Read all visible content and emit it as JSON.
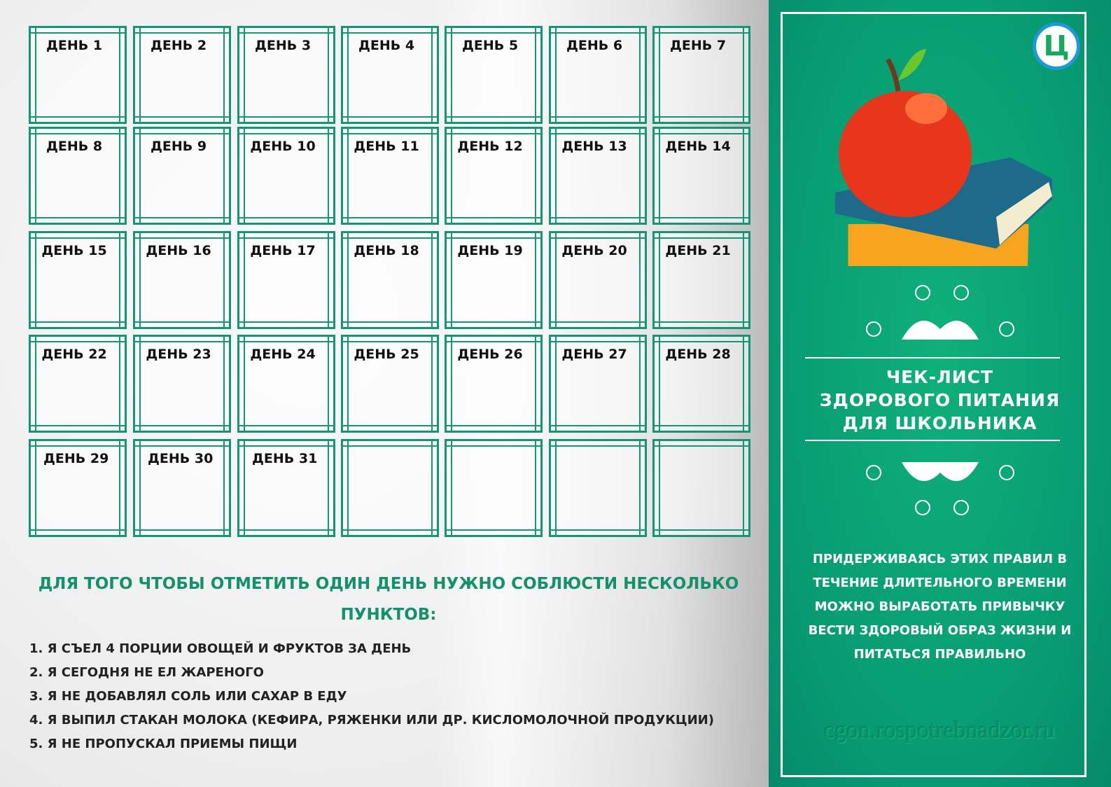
{
  "days": [
    "ДЕНЬ 1",
    "ДЕНЬ 2",
    "ДЕНЬ 3",
    "ДЕНЬ 4",
    "ДЕНЬ 5",
    "ДЕНЬ 6",
    "ДЕНЬ 7",
    "ДЕНЬ 8",
    "ДЕНЬ 9",
    "ДЕНЬ 10",
    "ДЕНЬ 11",
    "ДЕНЬ 12",
    "ДЕНЬ 13",
    "ДЕНЬ 14",
    "ДЕНЬ 15",
    "ДЕНЬ 16",
    "ДЕНЬ 17",
    "ДЕНЬ 18",
    "ДЕНЬ 19",
    "ДЕНЬ 20",
    "ДЕНЬ 21",
    "ДЕНЬ 22",
    "ДЕНЬ 23",
    "ДЕНЬ 24",
    "ДЕНЬ 25",
    "ДЕНЬ 26",
    "ДЕНЬ 27",
    "ДЕНЬ 28",
    "ДЕНЬ 29",
    "ДЕНЬ 30",
    "ДЕНЬ 31",
    "",
    "",
    "",
    ""
  ],
  "instruction": "ДЛЯ ТОГО ЧТОБЫ ОТМЕТИТЬ ОДИН ДЕНЬ НУЖНО СОБЛЮСТИ НЕСКОЛЬКО ПУНКТОВ:",
  "items": [
    "1. Я СЪЕЛ 4 ПОРЦИИ ОВОЩЕЙ И ФРУКТОВ ЗА ДЕНЬ",
    "2. Я СЕГОДНЯ НЕ ЕЛ ЖАРЕНОГО",
    "3. Я НЕ ДОБАВЛЯЛ СОЛЬ ИЛИ САХАР В ЕДУ",
    "4. Я ВЫПИЛ СТАКАН МОЛОКА (КЕФИРА, РЯЖЕНКИ ИЛИ ДР. КИСЛОМОЛОЧНОЙ ПРОДУКЦИИ)",
    "5. Я НЕ ПРОПУСКАЛ ПРИЕМЫ ПИЩИ"
  ],
  "panel": {
    "logo": "Ц",
    "title": [
      "ЧЕК-ЛИСТ",
      "ЗДОРОВОГО ПИТАНИЯ",
      "ДЛЯ ШКОЛЬНИКА"
    ],
    "description": "ПРИДЕРЖИВАЯСЬ ЭТИХ ПРАВИЛ В ТЕЧЕНИЕ ДЛИТЕЛЬНОГО ВРЕМЕНИ МОЖНО ВЫРАБОТАТЬ ПРИВЫЧКУ ВЕСТИ ЗДОРОВЫЙ ОБРАЗ ЖИЗНИ И ПИТАТЬСЯ ПРАВИЛЬНО",
    "watermark": "cgon.rospotrebnadzor.ru"
  },
  "colors": {
    "accent": "#139673",
    "panel": "#079a72"
  }
}
